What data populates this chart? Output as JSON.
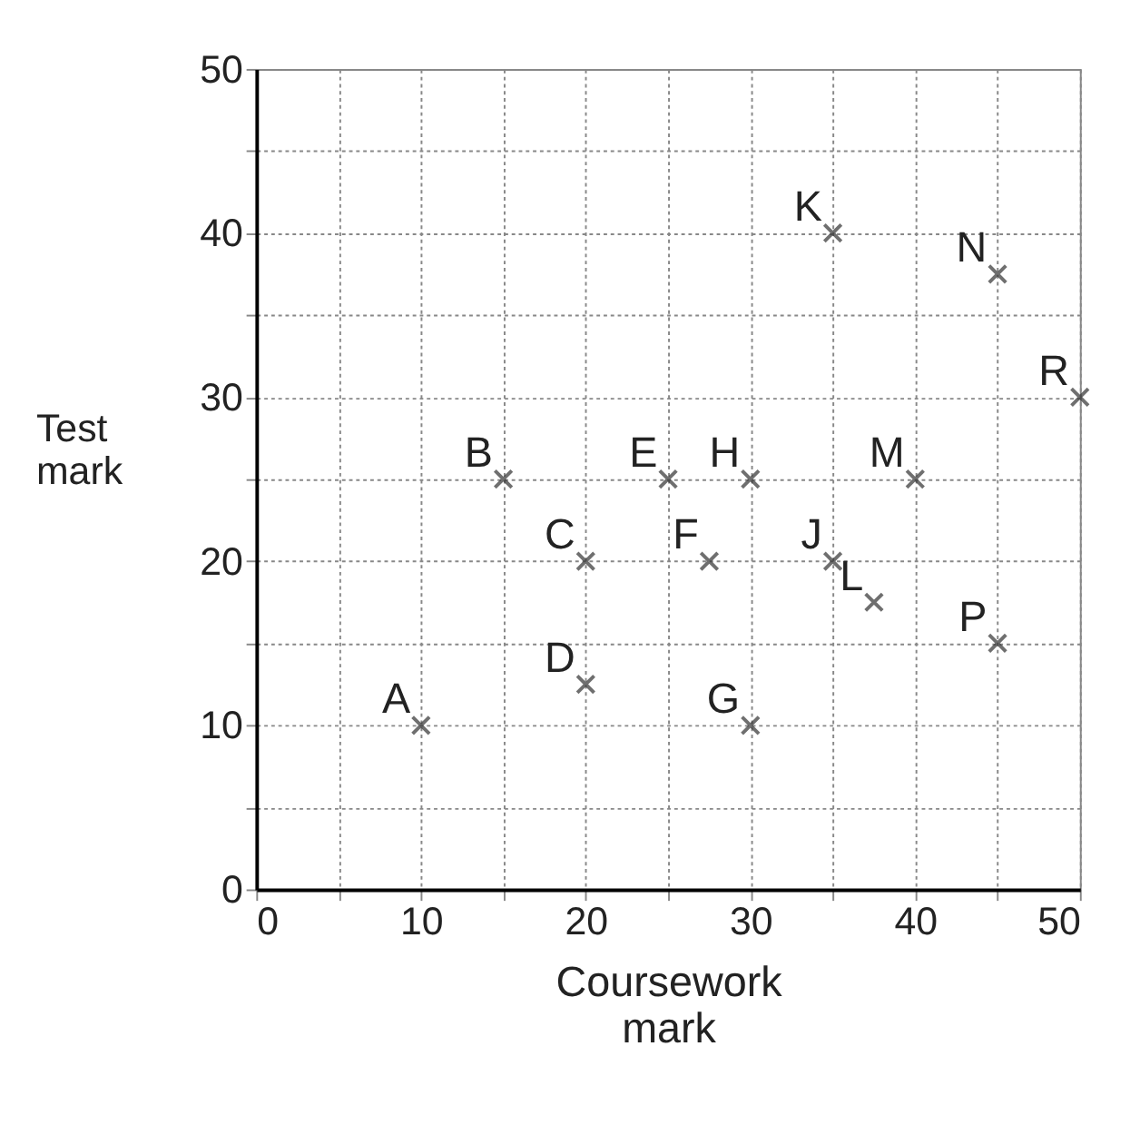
{
  "chart_data": {
    "type": "scatter",
    "xlabel": "Coursework\nmark",
    "ylabel": "Test\nmark",
    "x": [
      10,
      15,
      20,
      20,
      25,
      27.5,
      30,
      30,
      35,
      35,
      37.5,
      40,
      45,
      45,
      50
    ],
    "values": [
      10,
      25,
      20,
      12.5,
      25,
      20,
      10,
      25,
      20,
      40,
      17.5,
      25,
      37.5,
      15,
      30
    ],
    "color": "#333333",
    "marker": "cross",
    "grid": true,
    "xlim": [
      0,
      50
    ],
    "ylim": [
      0,
      50
    ],
    "xticks": [
      0,
      {
        "value": 5,
        "label": null
      },
      10,
      {
        "value": 15,
        "label": null
      },
      20,
      {
        "value": 25,
        "label": null
      },
      30,
      {
        "value": 35,
        "label": null
      },
      40,
      {
        "value": 45,
        "label": null
      },
      50
    ],
    "yticks": [
      0,
      {
        "value": 5,
        "label": null
      },
      10,
      {
        "value": 15,
        "label": null
      },
      20,
      {
        "value": 25,
        "label": null
      },
      30,
      {
        "value": 35,
        "label": null
      },
      40,
      {
        "value": 45,
        "label": null
      },
      50
    ],
    "annotations": [
      {
        "text": "A",
        "x": 10,
        "y": 10
      },
      {
        "text": "B",
        "x": 15,
        "y": 25
      },
      {
        "text": "C",
        "x": 20,
        "y": 20
      },
      {
        "text": "D",
        "x": 20,
        "y": 12.5
      },
      {
        "text": "E",
        "x": 25,
        "y": 25
      },
      {
        "text": "F",
        "x": 27.5,
        "y": 20
      },
      {
        "text": "G",
        "x": 30,
        "y": 10
      },
      {
        "text": "H",
        "x": 30,
        "y": 25
      },
      {
        "text": "J",
        "x": 35,
        "y": 20
      },
      {
        "text": "K",
        "x": 35,
        "y": 40
      },
      {
        "text": "L",
        "x": 37.5,
        "y": 17.5
      },
      {
        "text": "M",
        "x": 40,
        "y": 25
      },
      {
        "text": "N",
        "x": 45,
        "y": 37.5
      },
      {
        "text": "P",
        "x": 45,
        "y": 15
      },
      {
        "text": "R",
        "x": 50,
        "y": 30
      }
    ]
  }
}
